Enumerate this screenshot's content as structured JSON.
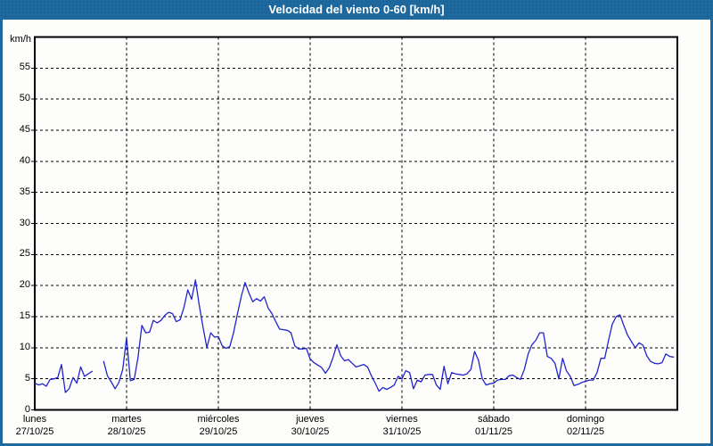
{
  "window": {
    "title": "Velocidad del viento 0-60 [km/h]"
  },
  "colors": {
    "titlebar_bg": "#1e6a9e",
    "frame": "#1e6a9e",
    "background": "#fdfefb",
    "plot_border": "#000000",
    "grid": "#000000",
    "line": "#2323cd",
    "text": "#000000",
    "title_text": "#ffffff"
  },
  "chart_data": {
    "type": "line",
    "title": "Velocidad del viento 0-60 [km/h]",
    "ylabel": "km/h",
    "xlabel": "",
    "ylim": [
      0,
      60
    ],
    "yticks": [
      0,
      5,
      10,
      15,
      20,
      25,
      30,
      35,
      40,
      45,
      50,
      55
    ],
    "grid": "dashed",
    "legend_position": "none",
    "sampling": "hourly (24 points per day, nulls = data gap)",
    "x_axis": {
      "days": [
        {
          "name": "lunes",
          "date": "27/10/25"
        },
        {
          "name": "martes",
          "date": "28/10/25"
        },
        {
          "name": "miércoles",
          "date": "29/10/25"
        },
        {
          "name": "jueves",
          "date": "30/10/25"
        },
        {
          "name": "viernes",
          "date": "31/10/25"
        },
        {
          "name": "sábado",
          "date": "01/11/25"
        },
        {
          "name": "domingo",
          "date": "02/11/25"
        }
      ]
    },
    "series": [
      {
        "name": "Velocidad del viento",
        "unit": "km/h",
        "color": "#2323cd",
        "values": [
          4.3,
          4.0,
          4.2,
          3.8,
          4.9,
          5.0,
          5.2,
          7.3,
          2.8,
          3.4,
          5.2,
          4.3,
          6.9,
          5.4,
          5.8,
          6.2,
          null,
          null,
          7.8,
          5.5,
          4.5,
          3.4,
          4.4,
          6.5,
          11.6,
          4.7,
          4.9,
          8.5,
          13.6,
          12.4,
          12.5,
          14.4,
          14.0,
          14.4,
          15.2,
          15.7,
          15.5,
          14.2,
          14.5,
          16.5,
          19.3,
          17.8,
          20.9,
          16.9,
          13.3,
          10.0,
          12.4,
          11.7,
          11.8,
          10.3,
          9.9,
          10.2,
          12.5,
          15.5,
          18.3,
          20.5,
          18.8,
          17.4,
          17.9,
          17.5,
          18.2,
          16.4,
          15.5,
          14.2,
          13.0,
          12.9,
          12.8,
          12.4,
          10.3,
          9.8,
          9.8,
          9.9,
          8.2,
          7.6,
          7.2,
          6.8,
          5.9,
          6.8,
          8.5,
          10.5,
          8.7,
          7.9,
          8.1,
          7.5,
          6.9,
          7.1,
          7.3,
          6.9,
          5.5,
          4.3,
          3.0,
          3.6,
          3.3,
          3.6,
          4.0,
          5.4,
          5.0,
          6.3,
          6.0,
          3.4,
          4.8,
          4.5,
          5.6,
          5.7,
          5.7,
          4.0,
          3.3,
          7.0,
          4.2,
          6.0,
          5.8,
          5.7,
          5.6,
          5.8,
          6.5,
          9.4,
          8.0,
          5.0,
          4.0,
          4.2,
          4.3,
          4.8,
          4.9,
          4.9,
          5.5,
          5.6,
          5.2,
          4.9,
          6.5,
          9.0,
          10.5,
          11.2,
          12.4,
          12.4,
          8.6,
          8.3,
          7.5,
          5.0,
          8.3,
          6.3,
          5.4,
          3.9,
          4.1,
          4.4,
          4.6,
          4.8,
          4.8,
          6.0,
          8.3,
          8.3,
          11.2,
          13.8,
          15.0,
          15.3,
          13.6,
          12.0,
          11.0,
          10.0,
          10.8,
          10.4,
          8.7,
          7.8,
          7.5,
          7.4,
          7.6,
          9.0,
          8.6,
          8.5
        ]
      }
    ]
  }
}
